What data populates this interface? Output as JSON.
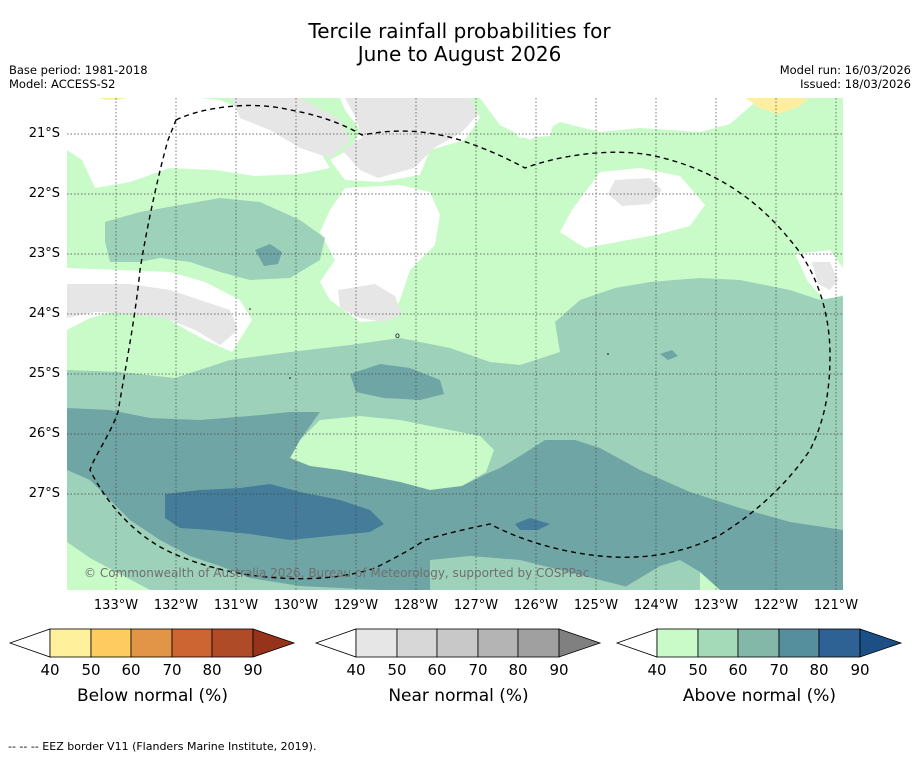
{
  "title": {
    "line1": "Tercile rainfall probabilities for",
    "line2": "June to August 2026"
  },
  "meta": {
    "base_period": "Base period: 1981-2018",
    "model": "Model: ACCESS-S2",
    "model_run": "Model run: 16/03/2026",
    "issued": "Issued: 18/03/2026"
  },
  "map": {
    "lat_labels": [
      "21°S",
      "22°S",
      "23°S",
      "24°S",
      "25°S",
      "26°S",
      "27°S"
    ],
    "lon_labels": [
      "133°W",
      "132°W",
      "131°W",
      "130°W",
      "129°W",
      "128°W",
      "127°W",
      "126°W",
      "125°W",
      "124°W",
      "123°W",
      "122°W",
      "121°W"
    ],
    "copyright": "© Commonwealth of Australia 2026, Bureau of Meteorology, supported by COSPPac",
    "colors": {
      "above_40": "#c9fbc9",
      "above_50": "#9dd1b9",
      "above_60": "#6fa6a5",
      "above_70": "#447c9a",
      "near_40": "#e6e6e6",
      "below_40": "#ffee9e"
    }
  },
  "colorbars": [
    {
      "name": "below",
      "title": "Below normal (%)",
      "ticks": [
        "40",
        "50",
        "60",
        "70",
        "80",
        "90"
      ],
      "colors": [
        "#ffffff",
        "#fff19c",
        "#fecb60",
        "#e29546",
        "#cc6532",
        "#b04b27",
        "#98331b"
      ]
    },
    {
      "name": "near",
      "title": "Near normal (%)",
      "ticks": [
        "40",
        "50",
        "60",
        "70",
        "80",
        "90"
      ],
      "colors": [
        "#ffffff",
        "#e6e6e6",
        "#d7d7d7",
        "#c8c8c8",
        "#b4b4b4",
        "#a0a0a0",
        "#808080"
      ]
    },
    {
      "name": "above",
      "title": "Above normal (%)",
      "ticks": [
        "40",
        "50",
        "60",
        "70",
        "80",
        "90"
      ],
      "colors": [
        "#ffffff",
        "#c9fbc9",
        "#a4dab8",
        "#83b8a8",
        "#558f9e",
        "#2f6294",
        "#1c4f86"
      ]
    }
  ],
  "footnote": "--  --  -- EEZ border V11 (Flanders Marine Institute, 2019)."
}
